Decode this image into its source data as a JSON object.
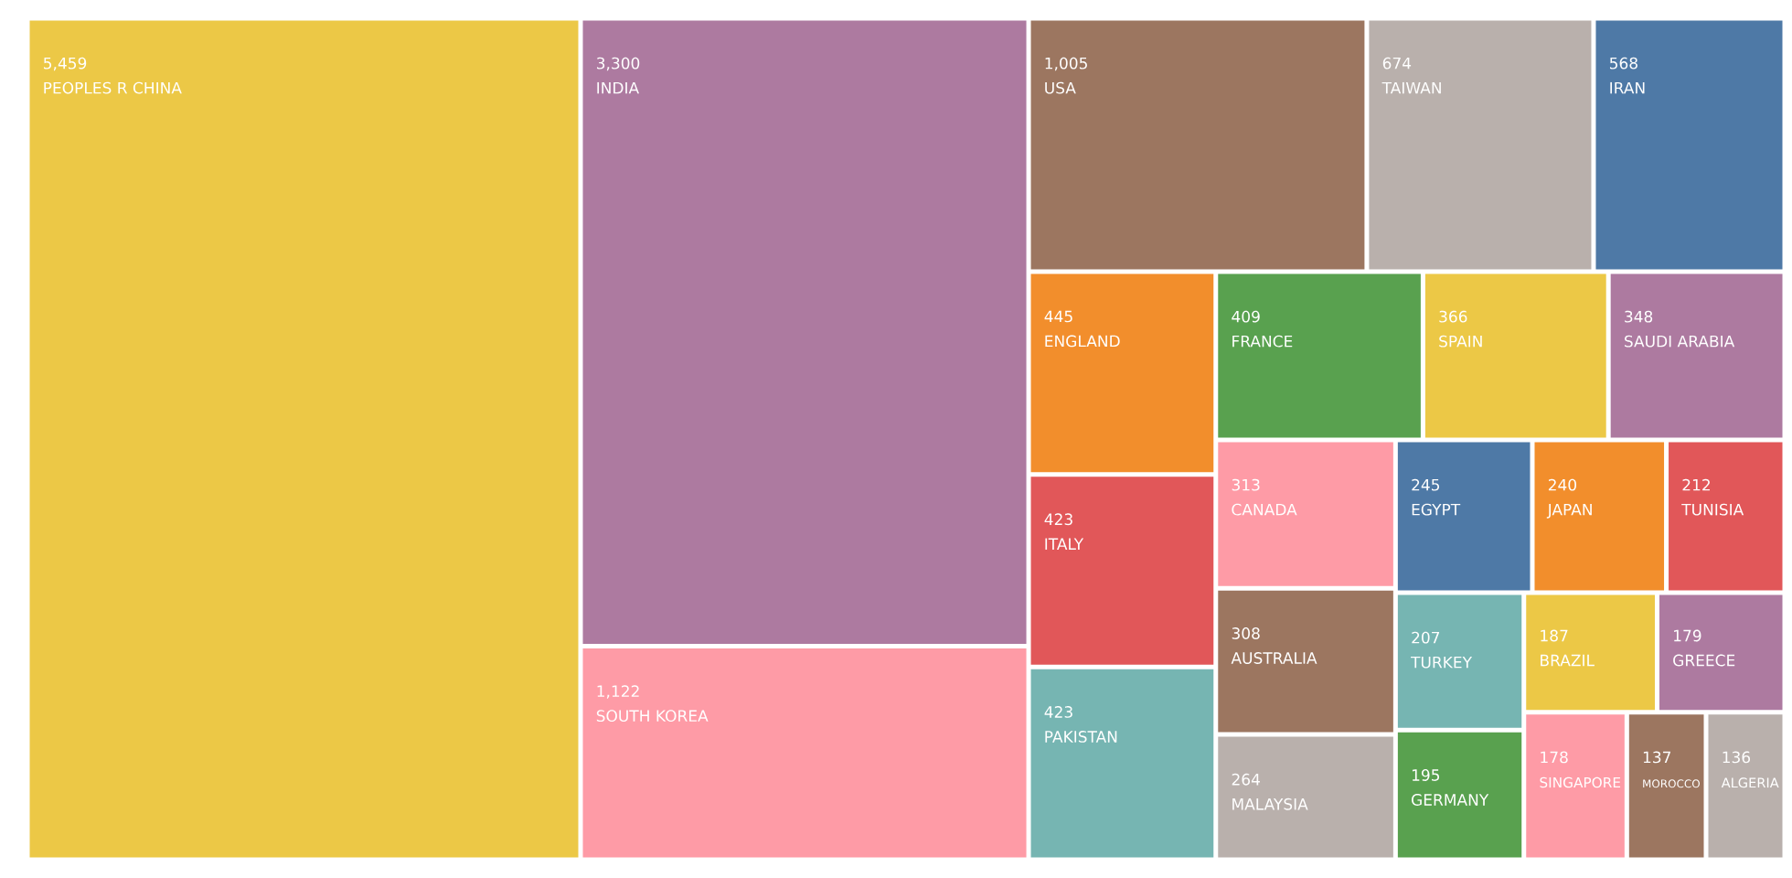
{
  "chart_data": {
    "type": "other",
    "categories": [
      "PEOPLES R CHINA",
      "INDIA",
      "SOUTH KOREA",
      "USA",
      "TAIWAN",
      "IRAN",
      "ENGLAND",
      "ITALY",
      "PAKISTAN",
      "FRANCE",
      "SPAIN",
      "SAUDI ARABIA",
      "CANADA",
      "AUSTRALIA",
      "MALAYSIA",
      "EGYPT",
      "JAPAN",
      "TUNISIA",
      "TURKEY",
      "GERMANY",
      "BRAZIL",
      "GREECE",
      "SINGAPORE",
      "MOROCCO",
      "ALGERIA"
    ],
    "values": [
      5459,
      3300,
      1122,
      1005,
      674,
      568,
      445,
      423,
      423,
      409,
      366,
      348,
      313,
      308,
      264,
      245,
      240,
      212,
      207,
      195,
      187,
      179,
      178,
      137,
      136
    ],
    "value_labels": [
      "5,459",
      "3,300",
      "1,122",
      "1,005",
      "674",
      "568",
      "445",
      "423",
      "423",
      "409",
      "366",
      "348",
      "313",
      "308",
      "264",
      "245",
      "240",
      "212",
      "207",
      "195",
      "187",
      "179",
      "178",
      "137",
      "136"
    ],
    "colors": [
      "#ecc846",
      "#ad7aa0",
      "#fe9ba6",
      "#9c7660",
      "#b9b0ac",
      "#4e79a6",
      "#f28e2c",
      "#e15759",
      "#76b5b2",
      "#59a14f",
      "#ecc846",
      "#ad7aa0",
      "#fe9ba6",
      "#9c7660",
      "#b9b0ac",
      "#4e79a6",
      "#f28e2c",
      "#e15759",
      "#76b5b2",
      "#59a14f",
      "#ecc846",
      "#ad7aa0",
      "#fe9ba6",
      "#9c7660",
      "#b9b0ac"
    ]
  }
}
